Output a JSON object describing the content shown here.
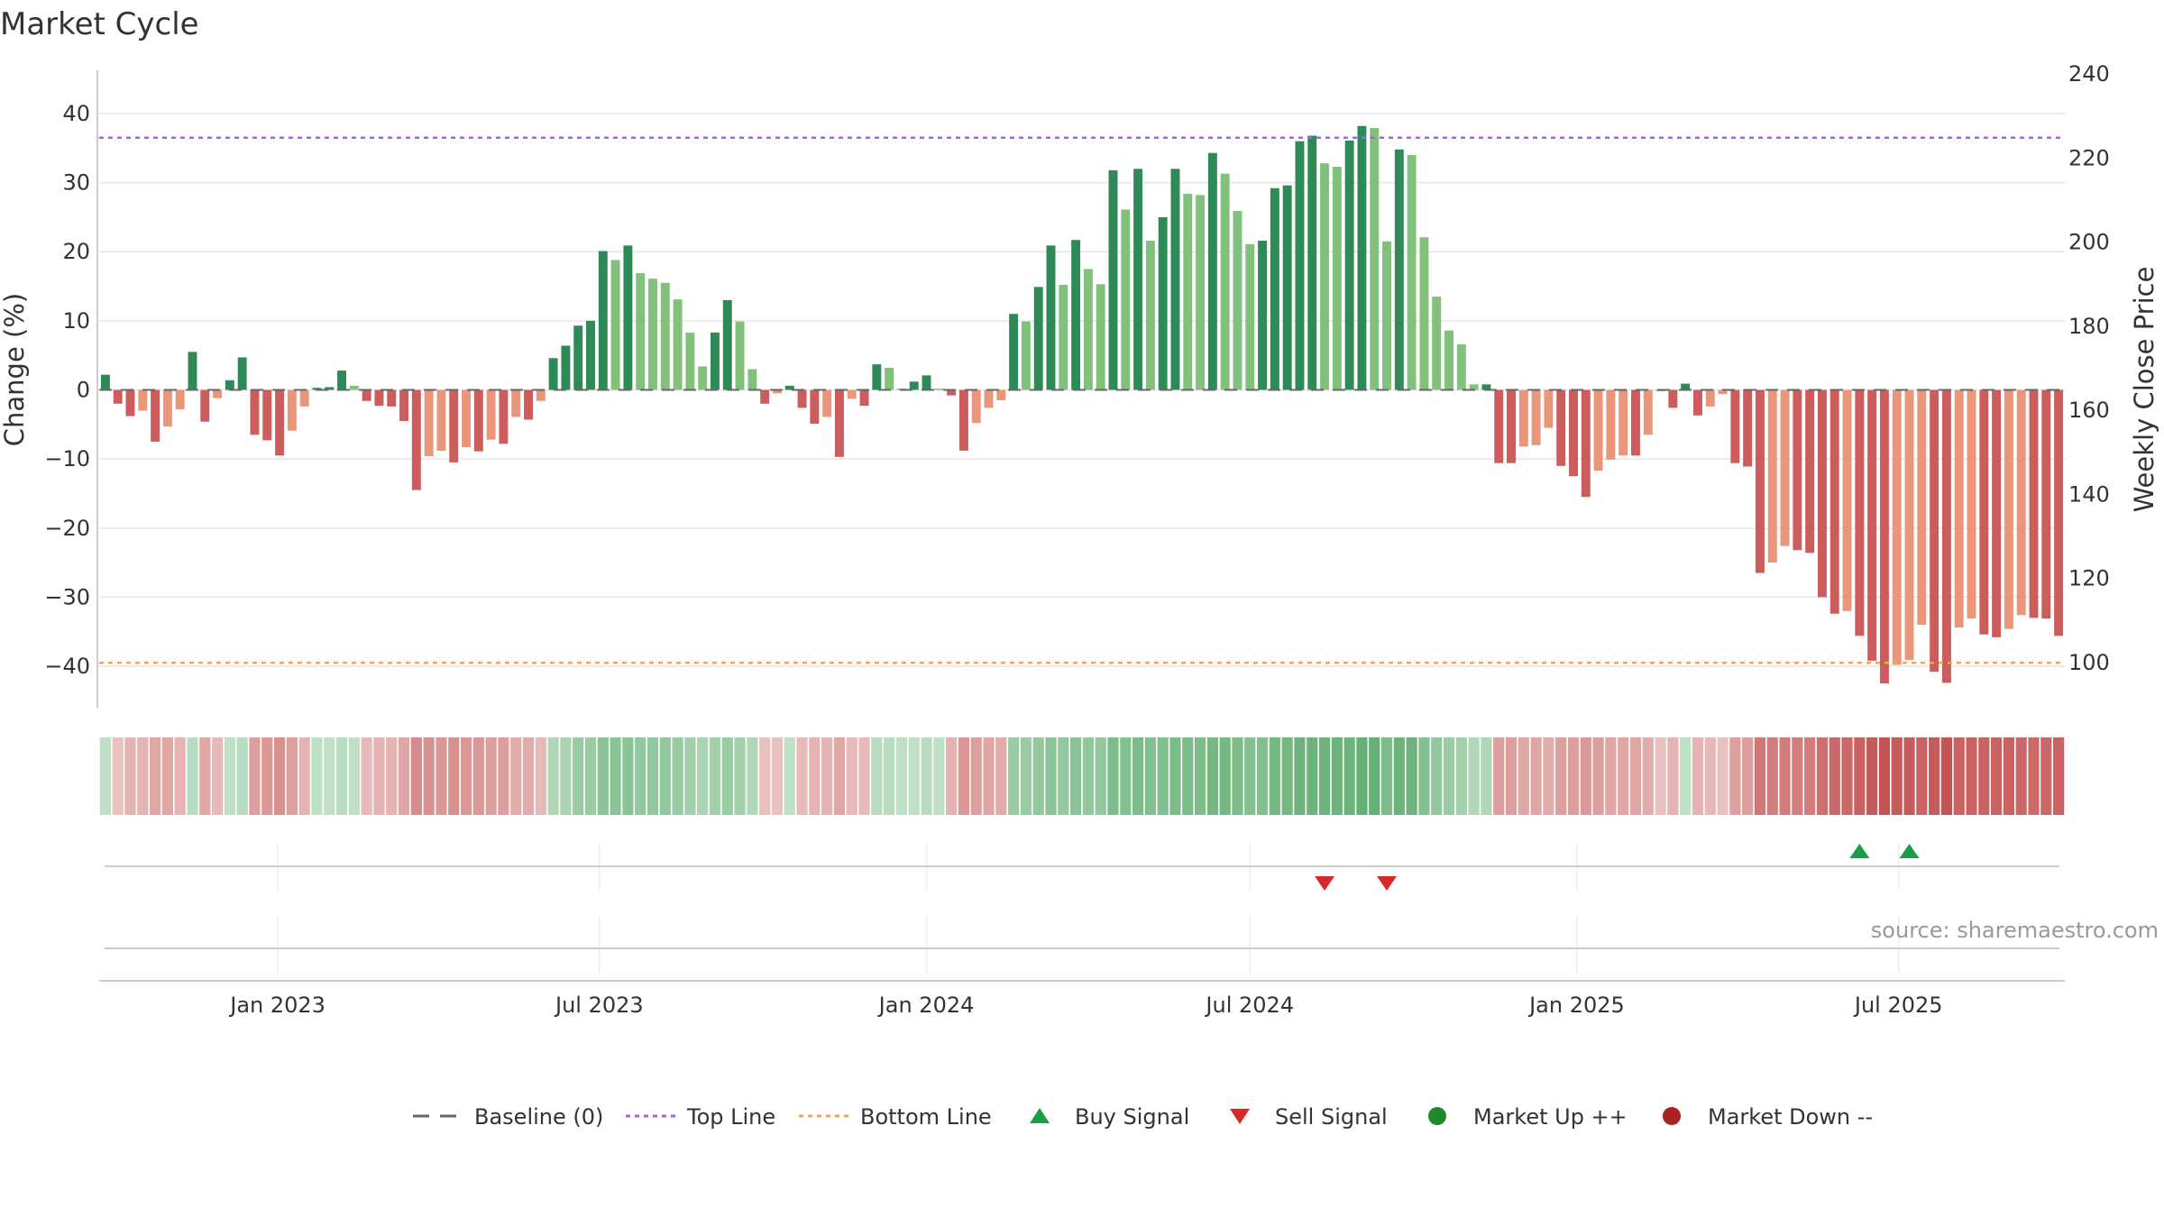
{
  "chart_data": {
    "type": "bar",
    "title": "Market Cycle",
    "ylabel_left": "Change (%)",
    "ylabel_right": "Weekly Close Price",
    "ylim_left": [
      -46,
      46
    ],
    "ylim_right": [
      95,
      240
    ],
    "yticks_left": [
      "40",
      "30",
      "20",
      "10",
      "0",
      "−10",
      "−20",
      "−30",
      "−40"
    ],
    "yticks_left_values": [
      40,
      30,
      20,
      10,
      0,
      -10,
      -20,
      -30,
      -40
    ],
    "yticks_right": [
      "240",
      "220",
      "200",
      "180",
      "160",
      "140",
      "120",
      "100"
    ],
    "yticks_right_values": [
      240,
      220,
      200,
      180,
      160,
      140,
      120,
      100
    ],
    "x_start": "2022-09-26",
    "x_step_days": 7,
    "x_ticks": [
      {
        "label": "Jan 2023",
        "date": "2023-01-01"
      },
      {
        "label": "Jul 2023",
        "date": "2023-07-01"
      },
      {
        "label": "Jan 2024",
        "date": "2024-01-01"
      },
      {
        "label": "Jul 2024",
        "date": "2024-07-01"
      },
      {
        "label": "Jan 2025",
        "date": "2025-01-01"
      },
      {
        "label": "Jul 2025",
        "date": "2025-07-01"
      }
    ],
    "top_line": 36.5,
    "bottom_line": -39.5,
    "series": [
      {
        "name": "Change (%)",
        "values": [
          2.2,
          -2.0,
          -3.8,
          -3.0,
          -7.5,
          -5.3,
          -2.8,
          5.5,
          -4.6,
          -1.2,
          1.4,
          4.7,
          -6.5,
          -7.3,
          -9.5,
          -5.9,
          -2.4,
          0.3,
          0.4,
          2.8,
          0.6,
          -1.6,
          -2.3,
          -2.4,
          -4.5,
          -14.5,
          -9.6,
          -8.8,
          -10.5,
          -8.3,
          -8.9,
          -7.2,
          -7.8,
          -3.9,
          -4.3,
          -1.6,
          4.6,
          6.4,
          9.3,
          10.0,
          20.1,
          18.8,
          20.9,
          16.9,
          16.1,
          15.5,
          13.1,
          8.3,
          3.4,
          8.3,
          13.0,
          9.9,
          3.0,
          -2.0,
          -0.5,
          0.6,
          -2.6,
          -4.9,
          -3.9,
          -9.7,
          -1.3,
          -2.3,
          3.7,
          3.2,
          0.2,
          1.2,
          2.1,
          0.2,
          -0.8,
          -8.8,
          -4.8,
          -2.6,
          -1.5,
          11.0,
          9.9,
          14.9,
          20.9,
          15.2,
          21.7,
          17.5,
          15.3,
          31.8,
          26.1,
          32.0,
          21.6,
          25.0,
          32.0,
          28.4,
          28.2,
          34.3,
          31.3,
          25.9,
          21.1,
          21.6,
          29.2,
          29.6,
          36.0,
          36.8,
          32.8,
          32.3,
          36.1,
          38.2,
          37.9,
          21.5,
          34.8,
          34.0,
          22.1,
          13.5,
          8.6,
          6.6,
          0.8,
          0.8,
          -10.6,
          -10.6,
          -8.2,
          -8.0,
          -5.5,
          -11.0,
          -12.5,
          -15.5,
          -11.7,
          -10.1,
          -9.5,
          -9.5,
          -6.5,
          -0.2,
          -2.6,
          0.9,
          -3.7,
          -2.4,
          -0.6,
          -10.6,
          -11.1,
          -26.5,
          -25.0,
          -22.6,
          -23.2,
          -23.6,
          -30.0,
          -32.4,
          -32.0,
          -35.6,
          -39.2,
          -42.5,
          -39.8,
          -39.1,
          -34.0,
          -40.8,
          -42.4,
          -34.4,
          -33.1,
          -35.4,
          -35.8,
          -34.6,
          -32.6,
          -33.0,
          -33.1,
          -35.6
        ]
      }
    ],
    "heat_scores": [
      0.2,
      -0.2,
      -0.3,
      -0.3,
      -0.4,
      -0.4,
      -0.3,
      0.25,
      -0.4,
      -0.25,
      0.2,
      0.25,
      -0.45,
      -0.5,
      -0.55,
      -0.45,
      -0.3,
      0.2,
      0.2,
      0.25,
      0.2,
      -0.25,
      -0.3,
      -0.3,
      -0.4,
      -0.6,
      -0.55,
      -0.5,
      -0.55,
      -0.5,
      -0.5,
      -0.45,
      -0.45,
      -0.35,
      -0.35,
      -0.25,
      0.3,
      0.35,
      0.45,
      0.45,
      0.55,
      0.55,
      0.55,
      0.5,
      0.5,
      0.5,
      0.45,
      0.4,
      0.35,
      0.4,
      0.45,
      0.4,
      0.3,
      -0.2,
      -0.2,
      0.2,
      -0.25,
      -0.3,
      -0.3,
      -0.4,
      -0.25,
      -0.25,
      0.25,
      0.25,
      0.2,
      0.2,
      0.25,
      0.2,
      -0.3,
      -0.5,
      -0.45,
      -0.4,
      -0.35,
      0.45,
      0.45,
      0.5,
      0.55,
      0.5,
      0.55,
      0.5,
      0.5,
      0.65,
      0.6,
      0.65,
      0.6,
      0.6,
      0.65,
      0.65,
      0.65,
      0.7,
      0.7,
      0.65,
      0.6,
      0.6,
      0.7,
      0.7,
      0.75,
      0.75,
      0.75,
      0.75,
      0.75,
      0.8,
      0.8,
      0.65,
      0.75,
      0.75,
      0.6,
      0.5,
      0.45,
      0.4,
      0.3,
      0.3,
      -0.45,
      -0.45,
      -0.4,
      -0.4,
      -0.35,
      -0.45,
      -0.45,
      -0.5,
      -0.45,
      -0.4,
      -0.4,
      -0.4,
      -0.35,
      -0.2,
      -0.3,
      0.2,
      -0.3,
      -0.25,
      -0.2,
      -0.45,
      -0.45,
      -0.75,
      -0.7,
      -0.7,
      -0.7,
      -0.7,
      -0.8,
      -0.85,
      -0.85,
      -0.9,
      -0.95,
      -1.0,
      -0.95,
      -0.95,
      -0.9,
      -0.95,
      -1.0,
      -0.9,
      -0.9,
      -0.9,
      -0.9,
      -0.9,
      -0.85,
      -0.85,
      -0.85,
      -0.9
    ],
    "buy_signals": [
      "2025-06-09",
      "2025-07-07"
    ],
    "sell_signals": [
      "2024-08-12",
      "2024-09-16"
    ],
    "source": "source: sharemaestro.com",
    "legend_position": "bottom-center",
    "legend": [
      {
        "label": "Baseline (0)",
        "kind": "dash",
        "color": "#666666"
      },
      {
        "label": "Top Line",
        "kind": "dot",
        "color": "#9c6ad6"
      },
      {
        "label": "Bottom Line",
        "kind": "dot",
        "color": "#f0a35e"
      },
      {
        "label": "Buy Signal",
        "kind": "tri-up",
        "color": "#1a9e4a"
      },
      {
        "label": "Sell Signal",
        "kind": "tri-down",
        "color": "#d62a2a"
      },
      {
        "label": "Market Up ++",
        "kind": "circle",
        "color": "#1f8a2c"
      },
      {
        "label": "Market Down --",
        "kind": "circle",
        "color": "#a82424"
      }
    ],
    "colors": {
      "up_strong": "#2e8b57",
      "up_weak": "#82c17c",
      "down_strong": "#cd5c5c",
      "down_weak": "#e9967a",
      "top_line": "#9c6ad6",
      "bottom_line": "#f0a35e",
      "grid": "#e6e6e6"
    }
  }
}
